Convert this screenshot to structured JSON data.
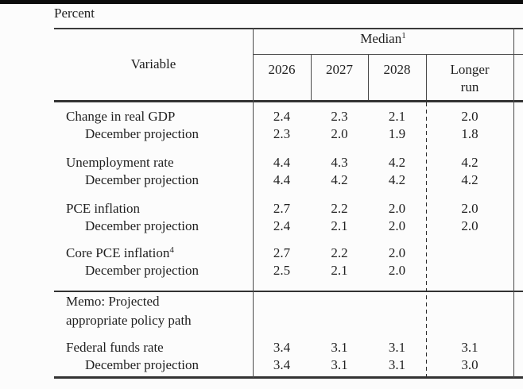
{
  "page": {
    "unit_label": "Percent"
  },
  "table": {
    "header": {
      "variable": "Variable",
      "median": "Median",
      "median_sup": "1",
      "years": [
        "2026",
        "2027",
        "2028"
      ],
      "longer_run_line1": "Longer",
      "longer_run_line2": "run"
    },
    "rows": [
      {
        "label": "Change in real GDP",
        "sup": "",
        "values": [
          "2.4",
          "2.3",
          "2.1",
          "2.0"
        ]
      },
      {
        "label": "December projection",
        "sup": "",
        "values": [
          "2.3",
          "2.0",
          "1.9",
          "1.8"
        ]
      },
      {
        "label": "Unemployment rate",
        "sup": "",
        "values": [
          "4.4",
          "4.3",
          "4.2",
          "4.2"
        ]
      },
      {
        "label": "December projection",
        "sup": "",
        "values": [
          "4.4",
          "4.2",
          "4.2",
          "4.2"
        ]
      },
      {
        "label": "PCE inflation",
        "sup": "",
        "values": [
          "2.7",
          "2.2",
          "2.0",
          "2.0"
        ]
      },
      {
        "label": "December projection",
        "sup": "",
        "values": [
          "2.4",
          "2.1",
          "2.0",
          "2.0"
        ]
      },
      {
        "label": "Core PCE inflation",
        "sup": "4",
        "values": [
          "2.7",
          "2.2",
          "2.0",
          ""
        ]
      },
      {
        "label": "December projection",
        "sup": "",
        "values": [
          "2.5",
          "2.1",
          "2.0",
          ""
        ]
      }
    ],
    "memo": {
      "line1": "Memo: Projected",
      "line2": "appropriate policy path"
    },
    "memo_rows": [
      {
        "label": "Federal funds rate",
        "values": [
          "3.4",
          "3.1",
          "3.1",
          "3.1"
        ]
      },
      {
        "label": "December projection",
        "values": [
          "3.4",
          "3.1",
          "3.1",
          "3.0"
        ]
      }
    ],
    "colors": {
      "text": "#1f1f1f",
      "rule": "#3a3a3a",
      "top_bar": "#0c0c0c",
      "background": "#fcfcfc"
    }
  }
}
